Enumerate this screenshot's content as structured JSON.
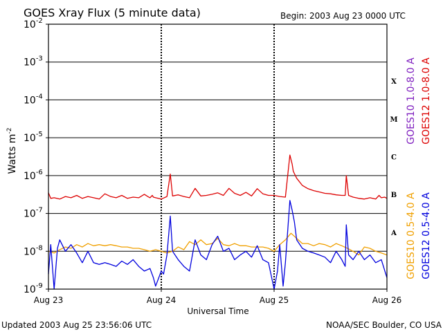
{
  "header": {
    "title": "GOES Xray Flux (5 minute data)",
    "begin": "Begin:  2003 Aug 23 0000 UTC"
  },
  "footer": {
    "updated": "Updated 2003 Aug 25 23:56:06 UTC",
    "credit": "NOAA/SEC Boulder, CO USA"
  },
  "colors": {
    "goes10_long": "#7f1fbf",
    "goes12_long": "#dd0000",
    "goes10_short": "#f0a000",
    "goes12_short": "#0000dd"
  },
  "chart_data": {
    "type": "line",
    "title": "GOES Xray Flux (5 minute data)",
    "xlabel": "Universal Time",
    "ylabel_base": "Watts m",
    "ylabel_sup": "-2",
    "y_scale": "log",
    "ylim": [
      1e-09,
      0.01
    ],
    "grid": "horizontal at each decade, dotted vertical at day boundaries",
    "x_ticks": [
      "Aug 23",
      "Aug 24",
      "Aug 25",
      "Aug 26"
    ],
    "y_tick_mantissa": [
      "10",
      "10",
      "10",
      "10",
      "10",
      "10",
      "10",
      "10"
    ],
    "y_tick_exponents": [
      "-9",
      "-8",
      "-7",
      "-6",
      "-5",
      "-4",
      "-3",
      "-2"
    ],
    "flare_classes": [
      "A",
      "B",
      "C",
      "M",
      "X"
    ],
    "legend_right": [
      {
        "name": "GOES10 1.0-8.0 A",
        "color": "#7f1fbf"
      },
      {
        "name": "GOES12 1.0-8.0 A",
        "color": "#dd0000"
      },
      {
        "name": "GOES10 0.5-4.0 A",
        "color": "#f0a000"
      },
      {
        "name": "GOES12 0.5-4.0 A",
        "color": "#0000dd"
      }
    ],
    "series": [
      {
        "name": "GOES12 1.0-8.0 A",
        "color": "#dd0000",
        "x": [
          0,
          0.02,
          0.05,
          0.1,
          0.15,
          0.2,
          0.25,
          0.3,
          0.35,
          0.4,
          0.45,
          0.5,
          0.55,
          0.6,
          0.65,
          0.7,
          0.75,
          0.8,
          0.85,
          0.88,
          0.9,
          0.92,
          0.93,
          0.95,
          1.0,
          1.05,
          1.08,
          1.1,
          1.15,
          1.2,
          1.25,
          1.3,
          1.35,
          1.4,
          1.45,
          1.5,
          1.55,
          1.6,
          1.65,
          1.7,
          1.75,
          1.8,
          1.85,
          1.9,
          1.95,
          2.0,
          2.05,
          2.1,
          2.14,
          2.16,
          2.17,
          2.2,
          2.25,
          2.3,
          2.35,
          2.4,
          2.45,
          2.5,
          2.55,
          2.6,
          2.63,
          2.64,
          2.66,
          2.7,
          2.75,
          2.8,
          2.85,
          2.9,
          2.93,
          2.95,
          2.98,
          3.0
        ],
        "y": [
          3.5e-07,
          2.5e-07,
          2.6e-07,
          2.4e-07,
          2.8e-07,
          2.6e-07,
          3e-07,
          2.5e-07,
          2.8e-07,
          2.6e-07,
          2.4e-07,
          3.3e-07,
          2.8e-07,
          2.6e-07,
          3e-07,
          2.5e-07,
          2.7e-07,
          2.6e-07,
          3.2e-07,
          2.8e-07,
          2.6e-07,
          3e-07,
          2.7e-07,
          2.6e-07,
          2.4e-07,
          2.8e-07,
          1.1e-06,
          2.9e-07,
          3.1e-07,
          2.8e-07,
          2.6e-07,
          4.6e-07,
          2.9e-07,
          3e-07,
          3.2e-07,
          3.5e-07,
          3e-07,
          4.6e-07,
          3.4e-07,
          3e-07,
          3.6e-07,
          2.9e-07,
          4.5e-07,
          3.3e-07,
          3e-07,
          3e-07,
          2.8e-07,
          2.7e-07,
          3.5e-06,
          2e-06,
          1.3e-06,
          8.5e-07,
          5.5e-07,
          4.5e-07,
          4e-07,
          3.7e-07,
          3.4e-07,
          3.3e-07,
          3.1e-07,
          3e-07,
          3e-07,
          1e-06,
          3e-07,
          2.7e-07,
          2.5e-07,
          2.4e-07,
          2.6e-07,
          2.4e-07,
          3e-07,
          2.6e-07,
          2.7e-07,
          2.5e-07
        ]
      },
      {
        "name": "GOES10 0.5-4.0 A",
        "color": "#f0a000",
        "x": [
          0,
          0.05,
          0.1,
          0.15,
          0.2,
          0.25,
          0.3,
          0.35,
          0.4,
          0.45,
          0.5,
          0.55,
          0.6,
          0.65,
          0.7,
          0.75,
          0.8,
          0.85,
          0.9,
          0.95,
          1.0,
          1.05,
          1.1,
          1.15,
          1.2,
          1.25,
          1.3,
          1.35,
          1.4,
          1.45,
          1.5,
          1.55,
          1.6,
          1.65,
          1.7,
          1.75,
          1.8,
          1.85,
          1.9,
          1.95,
          2.0,
          2.05,
          2.1,
          2.15,
          2.2,
          2.25,
          2.3,
          2.35,
          2.4,
          2.45,
          2.5,
          2.55,
          2.6,
          2.65,
          2.7,
          2.75,
          2.8,
          2.85,
          2.9,
          2.95,
          3.0
        ],
        "y": [
          1e-08,
          9e-09,
          1.1e-08,
          1.3e-08,
          1.2e-08,
          1.5e-08,
          1.3e-08,
          1.6e-08,
          1.4e-08,
          1.5e-08,
          1.4e-08,
          1.5e-08,
          1.4e-08,
          1.3e-08,
          1.3e-08,
          1.2e-08,
          1.2e-08,
          1.1e-08,
          1e-08,
          1.1e-08,
          1e-08,
          9e-09,
          1e-08,
          1.3e-08,
          1.1e-08,
          1.8e-08,
          1.5e-08,
          2e-08,
          1.5e-08,
          1.6e-08,
          2.2e-08,
          1.5e-08,
          1.4e-08,
          1.6e-08,
          1.4e-08,
          1.4e-08,
          1.3e-08,
          1.3e-08,
          1.3e-08,
          1.2e-08,
          1e-08,
          1.5e-08,
          2e-08,
          3e-08,
          2.2e-08,
          1.6e-08,
          1.6e-08,
          1.4e-08,
          1.6e-08,
          1.5e-08,
          1.3e-08,
          1.6e-08,
          1.4e-08,
          1.2e-08,
          1e-08,
          8e-09,
          1.3e-08,
          1.2e-08,
          1e-08,
          9e-09,
          8e-09
        ]
      },
      {
        "name": "GOES12 0.5-4.0 A",
        "color": "#0000dd",
        "x": [
          0,
          0.02,
          0.05,
          0.08,
          0.1,
          0.15,
          0.2,
          0.25,
          0.3,
          0.35,
          0.4,
          0.45,
          0.5,
          0.55,
          0.6,
          0.65,
          0.7,
          0.75,
          0.8,
          0.85,
          0.9,
          0.93,
          0.95,
          1.0,
          1.02,
          1.05,
          1.08,
          1.1,
          1.15,
          1.2,
          1.25,
          1.3,
          1.35,
          1.4,
          1.45,
          1.5,
          1.55,
          1.6,
          1.65,
          1.7,
          1.75,
          1.8,
          1.85,
          1.9,
          1.95,
          2.0,
          2.03,
          2.05,
          2.08,
          2.1,
          2.14,
          2.16,
          2.18,
          2.2,
          2.25,
          2.3,
          2.35,
          2.4,
          2.45,
          2.5,
          2.55,
          2.6,
          2.63,
          2.64,
          2.66,
          2.7,
          2.75,
          2.8,
          2.85,
          2.9,
          2.95,
          3.0
        ],
        "y": [
          2.5e-09,
          1.5e-08,
          1e-09,
          1.2e-08,
          2e-08,
          1e-08,
          1.5e-08,
          9e-09,
          5e-09,
          1e-08,
          5e-09,
          4.5e-09,
          5e-09,
          4.5e-09,
          4e-09,
          5.5e-09,
          4.5e-09,
          6e-09,
          4e-09,
          3e-09,
          3.5e-09,
          2e-09,
          1.2e-09,
          3e-09,
          2.5e-09,
          8e-09,
          8.5e-08,
          1e-08,
          6e-09,
          4e-09,
          3e-09,
          2e-08,
          8e-09,
          6e-09,
          1.5e-08,
          2.5e-08,
          1e-08,
          1.2e-08,
          6e-09,
          8e-09,
          1e-08,
          7e-09,
          1.4e-08,
          6e-09,
          5e-09,
          1e-09,
          3e-09,
          1.5e-08,
          1.2e-09,
          5e-09,
          2.2e-07,
          1.2e-07,
          6e-08,
          2e-08,
          1.2e-08,
          1e-08,
          9e-09,
          8e-09,
          7e-09,
          5e-09,
          1e-08,
          6e-09,
          4e-09,
          5e-08,
          8e-09,
          6e-09,
          1e-08,
          6e-09,
          8e-09,
          5e-09,
          6e-09,
          2e-09
        ]
      }
    ]
  }
}
